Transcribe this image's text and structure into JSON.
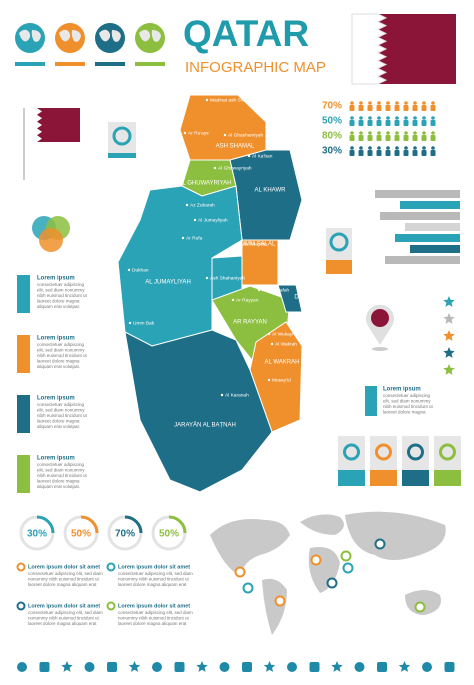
{
  "header": {
    "title": "QATAR",
    "subtitle": "INFOGRAPHIC MAP"
  },
  "stats": [
    "70%",
    "50%",
    "80%",
    "30%"
  ],
  "map": {
    "regions": [
      "ASH SHAMAL",
      "AL GHUWAYRIYAH",
      "AL KHAWR",
      "AL JUMAYLIYAH",
      "UMM SALAL",
      "AR RAYYAN",
      "DOHA",
      "AL WAKRAH",
      "JARAYĀN AL BAṬNAH"
    ],
    "places": [
      "Madinat ash Shamal",
      "Ar Ru'ays",
      "Al Ghashamiyah",
      "Al Ka'ban",
      "Al Ghuwayriyah",
      "Az Zubarah",
      "Al Jumayliyah",
      "Ar Rufa",
      "Dukhan",
      "Umm Bab",
      "Abu Thaylah",
      "Ash Shahaniyah",
      "Al Gharrafah",
      "Ar Rayyan",
      "Al Wukayr",
      "Al Wakrah",
      "Musay'id",
      "Al Karanah"
    ]
  },
  "side_notes": [
    {
      "title": "Lorem ipsum",
      "text": [
        "consectetuer adipiscing",
        "elit, sed diam nonummy",
        "nibh euismod tincidunt ut",
        "laoreet dolore magna",
        "aliquam erat volutpat."
      ]
    },
    {
      "title": "Lorem ipsum",
      "text": [
        "consectetuer adipiscing",
        "elit, sed diam nonummy",
        "nibh euismod tincidunt ut",
        "laoreet dolore magna",
        "aliquam erat volutpat."
      ]
    },
    {
      "title": "Lorem ipsum",
      "text": [
        "consectetuer adipiscing",
        "elit, sed diam nonummy",
        "nibh euismod tincidunt ut",
        "laoreet dolore magna",
        "aliquam erat volutpat."
      ]
    },
    {
      "title": "Lorem ipsum",
      "text": [
        "consectetuer adipiscing",
        "elit, sed diam nonummy",
        "nibh euismod tincidunt ut",
        "laoreet dolore magna",
        "aliquam erat volutpat."
      ]
    },
    {
      "title": "Lorem ipsum",
      "text": [
        "consectetuer adipiscing",
        "elit, sed diam nonummy",
        "nibh euismod tincidunt ut",
        "laoreet dolore magna"
      ]
    }
  ],
  "rings": [
    "30%",
    "50%",
    "70%",
    "50%"
  ],
  "items": [
    {
      "title": "Lorem ipsum dolor sit amet",
      "text": [
        "consectetuer adipiscing elit, sed diam",
        "nonummy nibh euismod tincidunt ut",
        "laoreet dolore magna aliquam erat"
      ]
    },
    {
      "title": "Lorem ipsum dolor sit amet",
      "text": [
        "consectetuer adipiscing elit, sed diam",
        "nonummy nibh euismod tincidunt ut",
        "laoreet dolore magna aliquam erat"
      ]
    },
    {
      "title": "Lorem ipsum dolor sit amet",
      "text": [
        "consectetuer adipiscing elit, sed diam",
        "nonummy nibh euismod tincidunt ut",
        "laoreet dolore magna aliquam erat"
      ]
    },
    {
      "title": "Lorem ipsum dolor sit amet",
      "text": [
        "consectetuer adipiscing elit, sed diam",
        "nonummy nibh euismod tincidunt ut",
        "laoreet dolore magna aliquam erat"
      ]
    }
  ]
}
